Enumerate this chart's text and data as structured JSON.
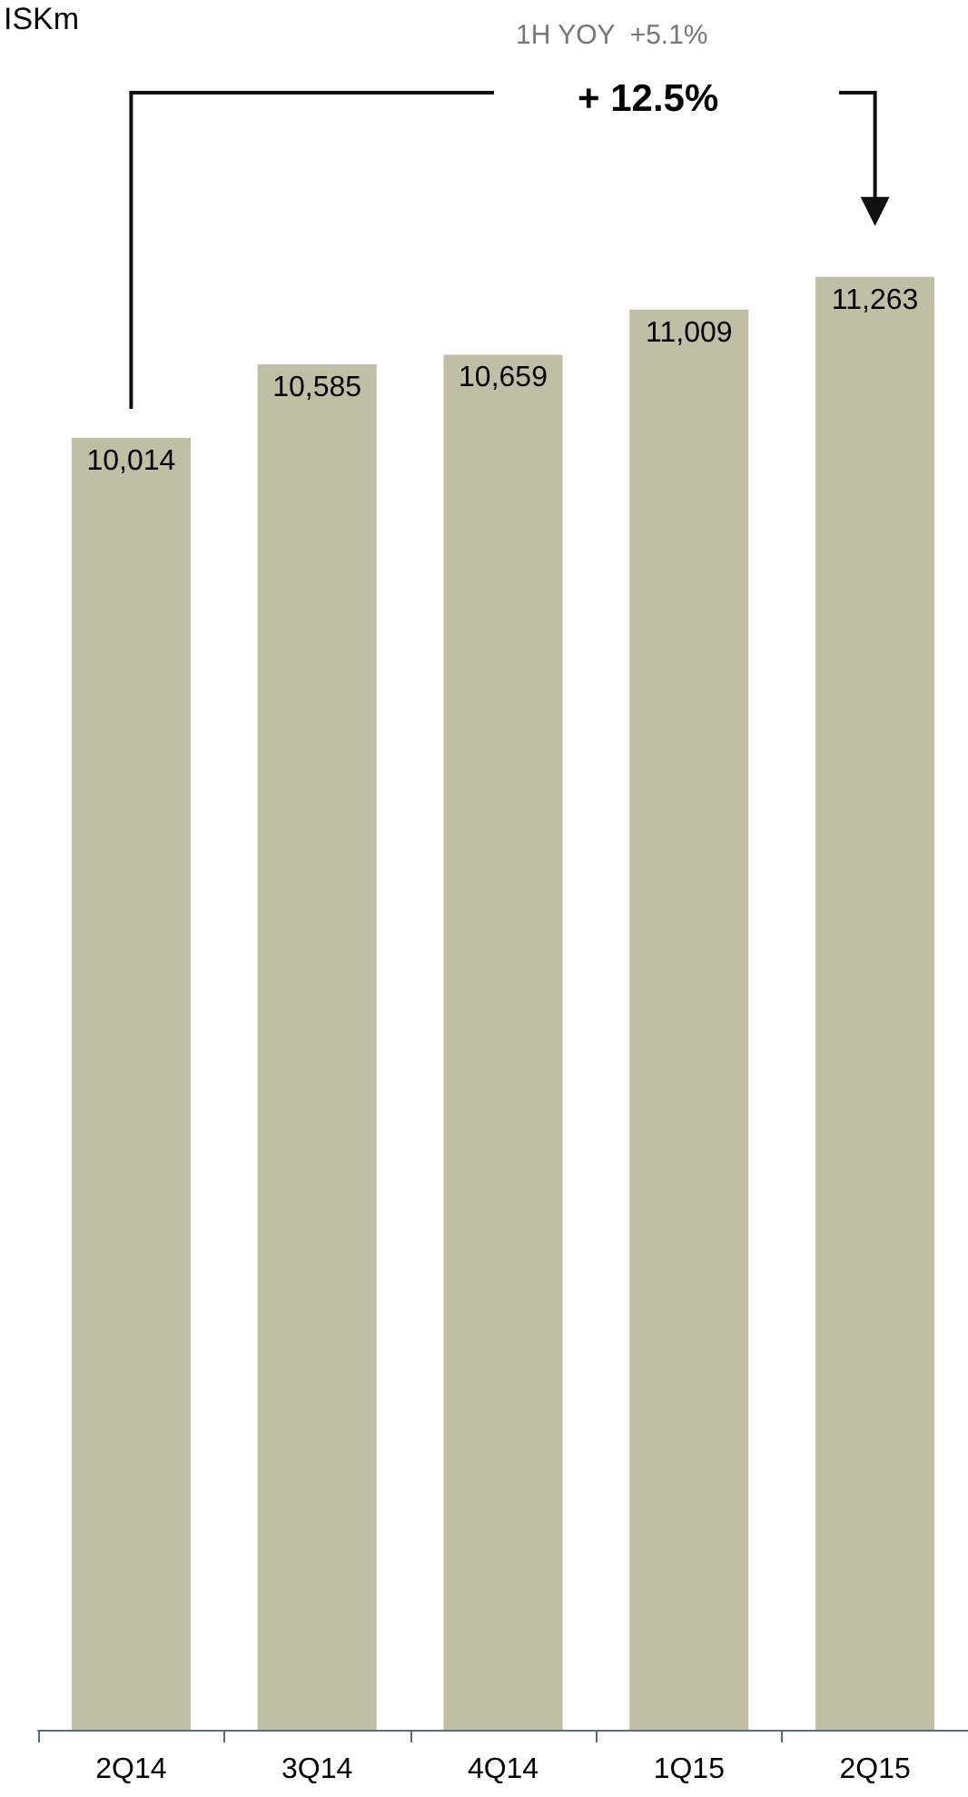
{
  "chart_data": {
    "type": "bar",
    "title": "ISKm",
    "categories": [
      "2Q14",
      "3Q14",
      "4Q14",
      "1Q15",
      "2Q15"
    ],
    "values": [
      10014,
      10585,
      10659,
      11009,
      11263
    ],
    "color": "#bfbfa5",
    "value_labels": [
      "10,014",
      "10,585",
      "10,659",
      "11,009",
      "11,263"
    ],
    "annotations": [
      "1H YOY  +5.1%",
      "+ 12.5%"
    ]
  }
}
